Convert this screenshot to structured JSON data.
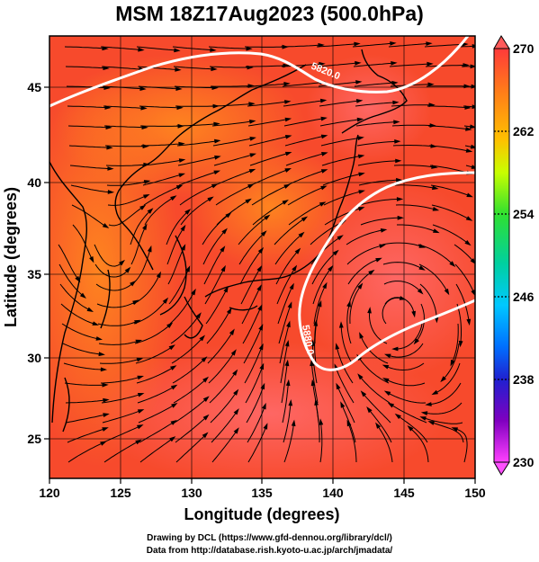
{
  "title": "MSM 18Z17Aug2023 (500.0hPa)",
  "map": {
    "xlabel": "Longitude (degrees)",
    "ylabel": "Latitude  (degrees)",
    "x_ticks": [
      "120",
      "125",
      "130",
      "135",
      "140",
      "145",
      "150"
    ],
    "y_ticks": [
      "25",
      "30",
      "35",
      "40",
      "45"
    ],
    "contour_labels": [
      "5820.0",
      "5880.0"
    ]
  },
  "colorbar": {
    "labels": [
      "270",
      "262",
      "254",
      "246",
      "238",
      "230"
    ],
    "colors": [
      "#ff3a3a",
      "#ff7a1a",
      "#ffc000",
      "#c8ff00",
      "#30e030",
      "#00d0a0",
      "#00c8ff",
      "#0070ff",
      "#2020d0",
      "#8000c0",
      "#e000d0",
      "#ff40ff"
    ]
  },
  "credits": {
    "line1": "Drawing by DCL (https://www.gfd-dennou.org/library/dcl/)",
    "line2": "Data from http://database.rish.kyoto-u.ac.jp/arch/jmadata/"
  }
}
